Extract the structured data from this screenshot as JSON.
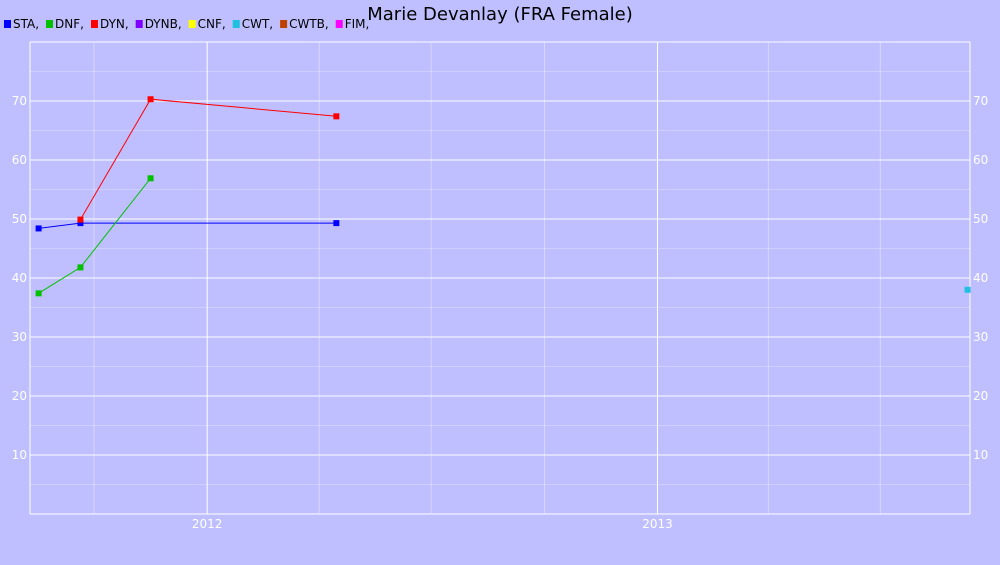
{
  "chart_data": {
    "type": "line",
    "title": "Marie Devanlay (FRA Female)",
    "xlabel": "",
    "ylabel": "",
    "x_tick_labels": [
      "2012",
      "2013"
    ],
    "ylim": [
      0,
      80
    ],
    "y_ticks": [
      10,
      20,
      30,
      40,
      50,
      60,
      70
    ],
    "grid": true,
    "legend_placement": "top-left",
    "legend": [
      {
        "name": "STA",
        "label": "STA,",
        "color": "#0000ff"
      },
      {
        "name": "DNF",
        "label": "DNF,",
        "color": "#00c000"
      },
      {
        "name": "DYN",
        "label": "DYN,",
        "color": "#ff0000"
      },
      {
        "name": "DYNB",
        "label": "DYNB,",
        "color": "#8000ff"
      },
      {
        "name": "CNF",
        "label": "CNF,",
        "color": "#ffff00"
      },
      {
        "name": "CWT",
        "label": "CWT,",
        "color": "#20c0e0"
      },
      {
        "name": "CWTB",
        "label": "CWTB,",
        "color": "#c04000"
      },
      {
        "name": "FIM",
        "label": "FIM,",
        "color": "#ff00ff"
      }
    ],
    "series": [
      {
        "name": "STA",
        "color": "#0000ff",
        "points": [
          {
            "x": "2011-08-17",
            "y": 48.4
          },
          {
            "x": "2011-09-20",
            "y": 49.3
          },
          {
            "x": "2012-04-15",
            "y": 49.3
          }
        ]
      },
      {
        "name": "DNF",
        "color": "#00c000",
        "points": [
          {
            "x": "2011-08-17",
            "y": 37.4
          },
          {
            "x": "2011-09-20",
            "y": 41.8
          },
          {
            "x": "2011-11-16",
            "y": 56.9
          }
        ]
      },
      {
        "name": "DYN",
        "color": "#ff0000",
        "points": [
          {
            "x": "2011-09-20",
            "y": 49.9
          },
          {
            "x": "2011-11-16",
            "y": 70.3
          },
          {
            "x": "2012-04-15",
            "y": 67.4
          }
        ]
      },
      {
        "name": "CWT",
        "color": "#20c0e0",
        "points": [
          {
            "x": "2013-09-10",
            "y": 38.0
          }
        ]
      }
    ]
  }
}
